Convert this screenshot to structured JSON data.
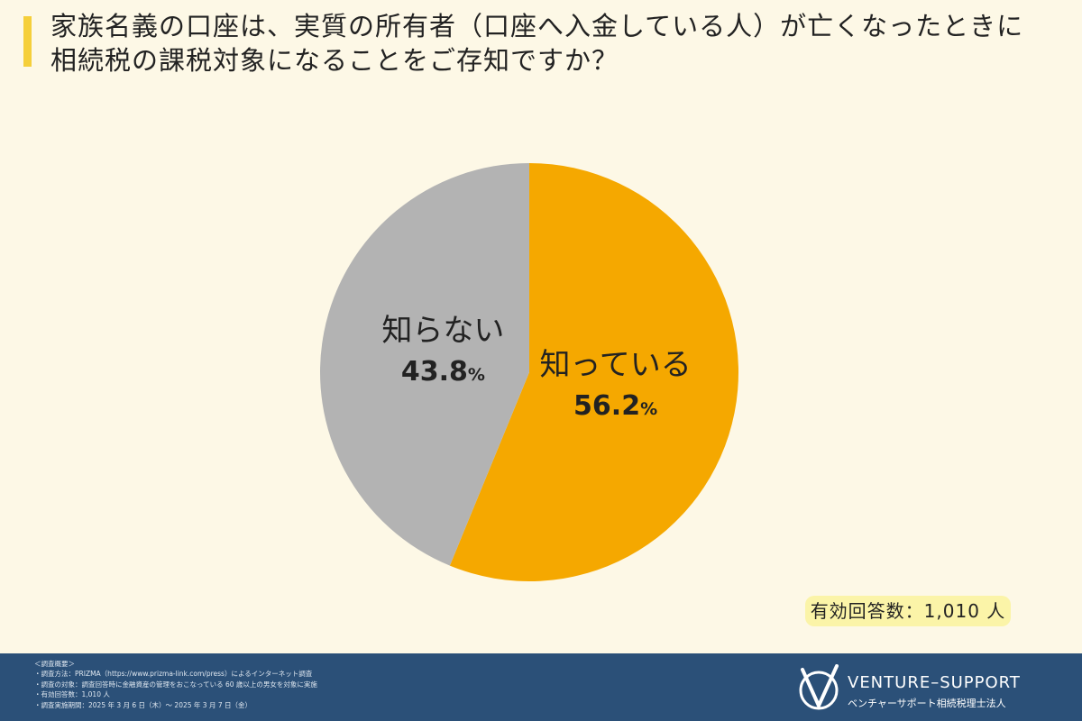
{
  "title": {
    "line1": "家族名義の口座は、実質の所有者（口座へ入金している人）が亡くなったときに",
    "line2": "相続税の課税対象になることをご存知ですか？"
  },
  "chart_data": {
    "type": "pie",
    "title": "家族名義の口座は、実質の所有者（口座へ入金している人）が亡くなったときに相続税の課税対象になることをご存知ですか？",
    "slices": [
      {
        "label": "知っている",
        "value": 56.2,
        "display": "56.2",
        "unit": "%",
        "color": "#f5a800"
      },
      {
        "label": "知らない",
        "value": 43.8,
        "display": "43.8",
        "unit": "%",
        "color": "#b3b3b3"
      }
    ],
    "start": "top",
    "direction": "clockwise"
  },
  "respondents": "有効回答数：1,010 人",
  "footer": {
    "notes": [
      "＜調査概要＞",
      "・調査方法：PRIZMA（https://www.prizma-link.com/press）によるインターネット調査",
      "・調査の対象：調査回答時に金融資産の管理をおこなっている 60 歳以上の男女を対象に実施",
      "・有効回答数：1,010 人",
      "・調査実施期間：2025 年 3 月 6 日（木）〜 2025 年 3 月 7 日（金）"
    ],
    "logo_name": "VENTURE–SUPPORT",
    "logo_sub": "ベンチャーサポート相続税理士法人"
  },
  "colors": {
    "background": "#fdf8e6",
    "accent_bar": "#f5cf3a",
    "footer": "#2b5078",
    "badge": "#fbf4a8"
  }
}
